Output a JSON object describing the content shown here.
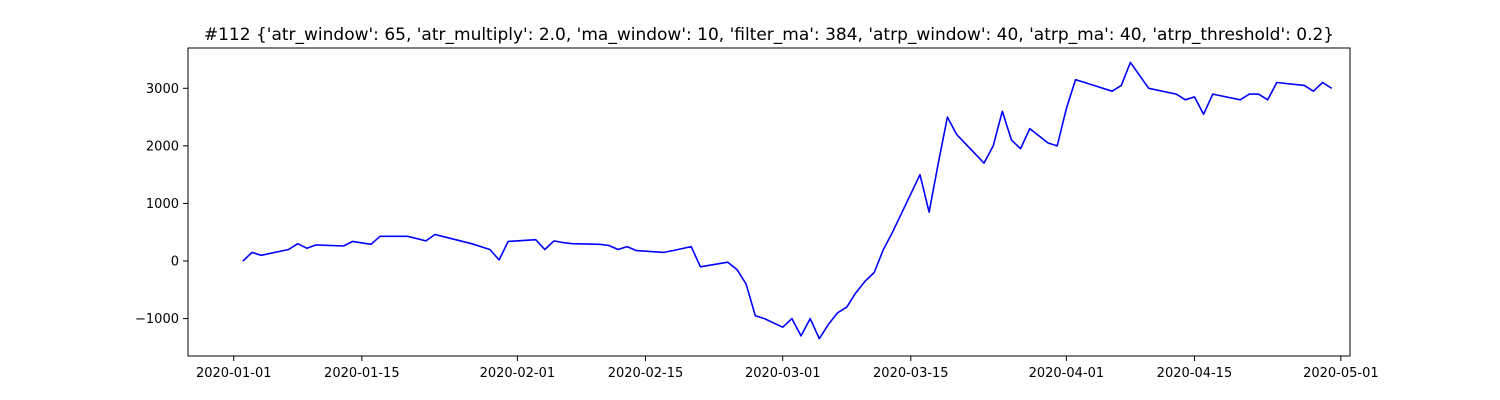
{
  "chart_data": {
    "type": "line",
    "title": "#112 {'atr_window': 65, 'atr_multiply': 2.0, 'ma_window': 10, 'filter_ma': 384, 'atrp_window': 40, 'atrp_ma': 40, 'atrp_threshold': 0.2}",
    "xlabel": "",
    "ylabel": "",
    "grid": false,
    "line_color": "#0000ff",
    "xlim": [
      "2019-12-27",
      "2020-05-02"
    ],
    "ylim": [
      -1650,
      3700
    ],
    "x_ticks": [
      "2020-01-01",
      "2020-01-15",
      "2020-02-01",
      "2020-02-15",
      "2020-03-01",
      "2020-03-15",
      "2020-04-01",
      "2020-04-15",
      "2020-05-01"
    ],
    "y_ticks": [
      -1000,
      0,
      1000,
      2000,
      3000
    ],
    "series": [
      {
        "x": [
          "2020-01-02",
          "2020-01-03",
          "2020-01-04",
          "2020-01-07",
          "2020-01-08",
          "2020-01-09",
          "2020-01-10",
          "2020-01-13",
          "2020-01-14",
          "2020-01-16",
          "2020-01-17",
          "2020-01-20",
          "2020-01-22",
          "2020-01-23",
          "2020-01-24",
          "2020-01-27",
          "2020-01-29",
          "2020-01-30",
          "2020-01-31",
          "2020-02-03",
          "2020-02-04",
          "2020-02-05",
          "2020-02-06",
          "2020-02-07",
          "2020-02-10",
          "2020-02-11",
          "2020-02-12",
          "2020-02-13",
          "2020-02-14",
          "2020-02-17",
          "2020-02-18",
          "2020-02-20",
          "2020-02-21",
          "2020-02-24",
          "2020-02-25",
          "2020-02-26",
          "2020-02-27",
          "2020-02-28",
          "2020-03-01",
          "2020-03-02",
          "2020-03-03",
          "2020-03-04",
          "2020-03-05",
          "2020-03-06",
          "2020-03-07",
          "2020-03-08",
          "2020-03-09",
          "2020-03-10",
          "2020-03-11",
          "2020-03-12",
          "2020-03-13",
          "2020-03-16",
          "2020-03-17",
          "2020-03-18",
          "2020-03-19",
          "2020-03-20",
          "2020-03-23",
          "2020-03-24",
          "2020-03-25",
          "2020-03-26",
          "2020-03-27",
          "2020-03-28",
          "2020-03-30",
          "2020-03-31",
          "2020-04-01",
          "2020-04-02",
          "2020-04-03",
          "2020-04-04",
          "2020-04-06",
          "2020-04-07",
          "2020-04-08",
          "2020-04-10",
          "2020-04-13",
          "2020-04-14",
          "2020-04-15",
          "2020-04-16",
          "2020-04-17",
          "2020-04-20",
          "2020-04-21",
          "2020-04-22",
          "2020-04-23",
          "2020-04-24",
          "2020-04-27",
          "2020-04-28",
          "2020-04-29",
          "2020-04-30"
        ],
        "values": [
          0,
          150,
          100,
          200,
          300,
          220,
          280,
          260,
          340,
          290,
          430,
          430,
          350,
          460,
          420,
          300,
          200,
          20,
          340,
          370,
          200,
          350,
          320,
          300,
          290,
          270,
          200,
          250,
          180,
          150,
          180,
          250,
          -100,
          -20,
          -150,
          -400,
          -950,
          -1000,
          -1150,
          -1000,
          -1300,
          -1000,
          -1350,
          -1100,
          -900,
          -800,
          -550,
          -350,
          -200,
          200,
          500,
          1500,
          850,
          1700,
          2500,
          2200,
          1700,
          2000,
          2600,
          2100,
          1950,
          2300,
          2050,
          2000,
          2650,
          3150,
          3100,
          3050,
          2950,
          3050,
          3450,
          3000,
          2900,
          2800,
          2850,
          2550,
          2900,
          2800,
          2900,
          2900,
          2800,
          3100,
          3050,
          2950,
          3100,
          3000
        ]
      }
    ]
  }
}
